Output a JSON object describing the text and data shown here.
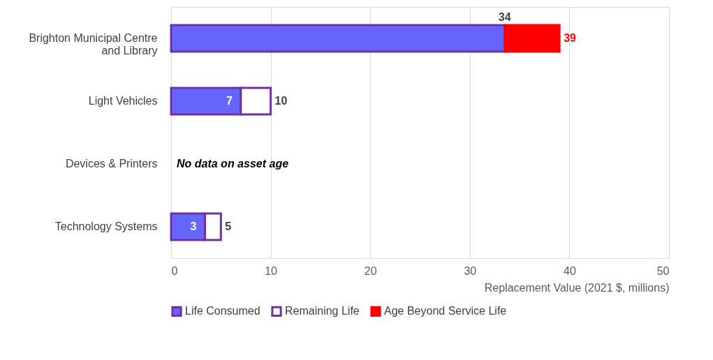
{
  "chart_data": {
    "type": "bar",
    "orientation": "horizontal",
    "stacked": true,
    "categories": [
      "Brighton Municipal Centre and Library",
      "Light Vehicles",
      "Devices & Printers",
      "Technology Systems"
    ],
    "series": [
      {
        "name": "Life Consumed",
        "color": "#6666ff",
        "values": [
          33.5,
          7,
          null,
          3.4
        ],
        "value_labels": [
          "34",
          "7",
          null,
          "3"
        ]
      },
      {
        "name": "Remaining Life",
        "color": "#ffffff",
        "values": [
          null,
          3,
          null,
          1.6
        ]
      },
      {
        "name": "Age Beyond Service Life",
        "color": "#ff0000",
        "values": [
          5.5,
          null,
          null,
          null
        ]
      }
    ],
    "totals": [
      "39",
      "10",
      null,
      "5"
    ],
    "xlabel": "Replacement Value (2021 $, millions)",
    "xlim": [
      0,
      50
    ],
    "xticks": [
      0,
      10,
      20,
      30,
      40,
      50
    ],
    "grid": "x",
    "legend": "bottom",
    "annotations": [
      "No data on asset age"
    ]
  }
}
